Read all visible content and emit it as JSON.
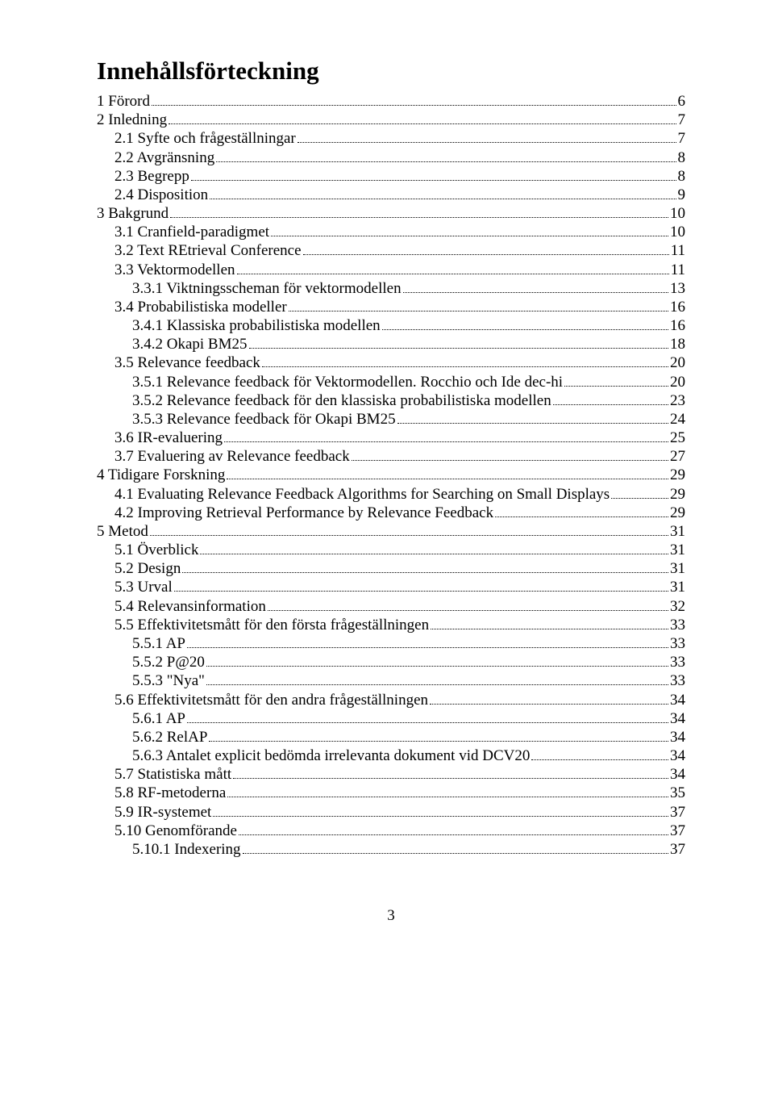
{
  "title": "Innehållsförteckning",
  "page_number": "3",
  "font": {
    "family": "Times New Roman",
    "title_size_pt": 24,
    "body_size_pt": 14,
    "title_weight": "bold"
  },
  "colors": {
    "text": "#000000",
    "background": "#ffffff",
    "dots": "#000000"
  },
  "entries": [
    {
      "indent": 0,
      "label": "1 Förord",
      "page": "6"
    },
    {
      "indent": 0,
      "label": "2 Inledning",
      "page": "7"
    },
    {
      "indent": 1,
      "label": "2.1 Syfte och frågeställningar",
      "page": "7"
    },
    {
      "indent": 1,
      "label": "2.2 Avgränsning",
      "page": "8"
    },
    {
      "indent": 1,
      "label": "2.3 Begrepp",
      "page": "8"
    },
    {
      "indent": 1,
      "label": "2.4 Disposition",
      "page": "9"
    },
    {
      "indent": 0,
      "label": "3 Bakgrund",
      "page": "10"
    },
    {
      "indent": 1,
      "label": "3.1 Cranfield-paradigmet",
      "page": "10"
    },
    {
      "indent": 1,
      "label": "3.2 Text REtrieval Conference",
      "page": "11"
    },
    {
      "indent": 1,
      "label": "3.3 Vektormodellen",
      "page": "11"
    },
    {
      "indent": 2,
      "label": "3.3.1 Viktningsscheman för vektormodellen",
      "page": "13"
    },
    {
      "indent": 1,
      "label": "3.4 Probabilistiska modeller",
      "page": "16"
    },
    {
      "indent": 2,
      "label": "3.4.1 Klassiska probabilistiska modellen",
      "page": "16"
    },
    {
      "indent": 2,
      "label": "3.4.2 Okapi BM25",
      "page": "18"
    },
    {
      "indent": 1,
      "label": "3.5 Relevance feedback",
      "page": "20"
    },
    {
      "indent": 2,
      "label": "3.5.1 Relevance feedback för Vektormodellen. Rocchio och Ide dec-hi",
      "page": "20"
    },
    {
      "indent": 2,
      "label": "3.5.2 Relevance feedback för den klassiska probabilistiska modellen",
      "page": "23"
    },
    {
      "indent": 2,
      "label": "3.5.3 Relevance feedback för Okapi BM25",
      "page": "24"
    },
    {
      "indent": 1,
      "label": "3.6 IR-evaluering",
      "page": "25"
    },
    {
      "indent": 1,
      "label": "3.7 Evaluering av Relevance feedback",
      "page": "27"
    },
    {
      "indent": 0,
      "label": "4 Tidigare Forskning",
      "page": "29"
    },
    {
      "indent": 1,
      "label": "4.1 Evaluating Relevance Feedback Algorithms for Searching on Small Displays",
      "page": "29"
    },
    {
      "indent": 1,
      "label": "4.2 Improving Retrieval Performance by Relevance Feedback",
      "page": "29"
    },
    {
      "indent": 0,
      "label": "5 Metod",
      "page": "31"
    },
    {
      "indent": 1,
      "label": "5.1 Överblick",
      "page": "31"
    },
    {
      "indent": 1,
      "label": "5.2 Design",
      "page": "31"
    },
    {
      "indent": 1,
      "label": "5.3 Urval",
      "page": "31"
    },
    {
      "indent": 1,
      "label": "5.4 Relevansinformation",
      "page": "32"
    },
    {
      "indent": 1,
      "label": "5.5 Effektivitetsmått för den första frågeställningen",
      "page": "33"
    },
    {
      "indent": 2,
      "label": "5.5.1 AP",
      "page": "33"
    },
    {
      "indent": 2,
      "label": "5.5.2 P@20",
      "page": "33"
    },
    {
      "indent": 2,
      "label": "5.5.3 \"Nya\"",
      "page": "33"
    },
    {
      "indent": 1,
      "label": "5.6 Effektivitetsmått för den andra frågeställningen",
      "page": "34"
    },
    {
      "indent": 2,
      "label": "5.6.1 AP",
      "page": "34"
    },
    {
      "indent": 2,
      "label": "5.6.2 RelAP",
      "page": "34"
    },
    {
      "indent": 2,
      "label": "5.6.3 Antalet explicit bedömda irrelevanta dokument vid DCV20",
      "page": "34"
    },
    {
      "indent": 1,
      "label": "5.7 Statistiska mått",
      "page": "34"
    },
    {
      "indent": 1,
      "label": "5.8 RF-metoderna",
      "page": "35"
    },
    {
      "indent": 1,
      "label": "5.9 IR-systemet",
      "page": "37"
    },
    {
      "indent": 1,
      "label": "5.10 Genomförande",
      "page": "37"
    },
    {
      "indent": 2,
      "label": "5.10.1 Indexering",
      "page": "37"
    }
  ]
}
